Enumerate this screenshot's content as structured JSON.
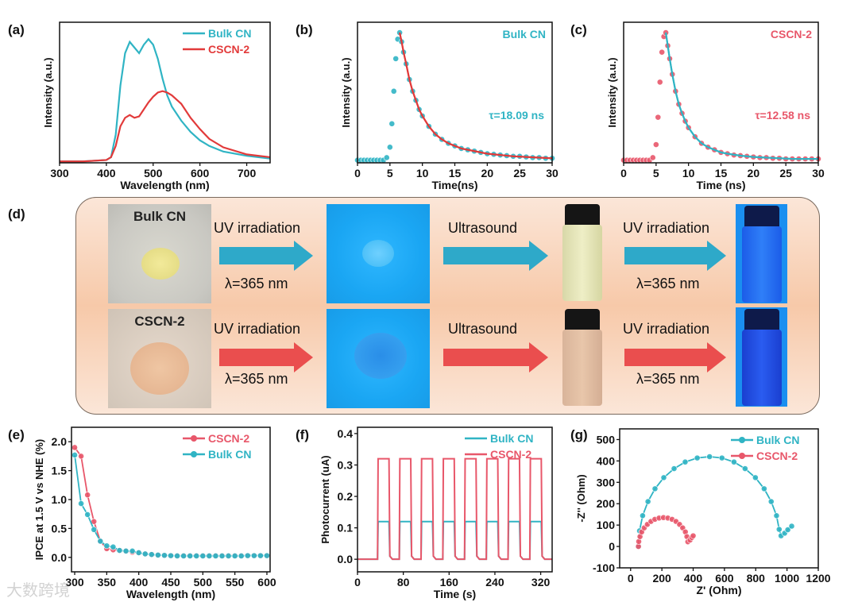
{
  "panel_labels": {
    "a": "(a)",
    "b": "(b)",
    "c": "(c)",
    "d": "(d)",
    "e": "(e)",
    "f": "(f)",
    "g": "(g)"
  },
  "colors": {
    "cyan": "#30b4c4",
    "red": "#e23a3a",
    "pink": "#e8576a"
  },
  "watermark": "大数跨境",
  "chart_data": [
    {
      "id": "a",
      "type": "line",
      "title": "",
      "xlabel": "Wavelength (nm)",
      "ylabel": "Intensity (a.u.)",
      "xlim": [
        300,
        750
      ],
      "ylim": [
        0,
        1
      ],
      "xticks": [
        300,
        400,
        500,
        600,
        700
      ],
      "yticks": [],
      "legend": "top-right",
      "series": [
        {
          "name": "Bulk CN",
          "color": "#30b4c4",
          "style": "line",
          "x": [
            300,
            350,
            400,
            410,
            420,
            430,
            440,
            450,
            460,
            470,
            480,
            490,
            500,
            510,
            520,
            530,
            540,
            560,
            580,
            600,
            620,
            650,
            700,
            750
          ],
          "y": [
            0.01,
            0.01,
            0.02,
            0.04,
            0.2,
            0.55,
            0.78,
            0.86,
            0.82,
            0.78,
            0.84,
            0.88,
            0.84,
            0.74,
            0.6,
            0.48,
            0.4,
            0.3,
            0.22,
            0.16,
            0.12,
            0.08,
            0.05,
            0.03
          ]
        },
        {
          "name": "CSCN-2",
          "color": "#e23a3a",
          "style": "line",
          "x": [
            300,
            350,
            400,
            410,
            420,
            430,
            440,
            450,
            460,
            470,
            480,
            490,
            500,
            510,
            520,
            530,
            540,
            560,
            580,
            600,
            620,
            650,
            700,
            750
          ],
          "y": [
            0.01,
            0.01,
            0.02,
            0.04,
            0.12,
            0.26,
            0.32,
            0.34,
            0.32,
            0.33,
            0.38,
            0.43,
            0.47,
            0.5,
            0.51,
            0.5,
            0.48,
            0.42,
            0.32,
            0.24,
            0.17,
            0.11,
            0.06,
            0.04
          ]
        }
      ]
    },
    {
      "id": "b",
      "type": "scatter",
      "xlabel": "Time(ns)",
      "ylabel": "Intensity (a.u.)",
      "xlim": [
        0,
        30
      ],
      "ylim": [
        0,
        1.08
      ],
      "xticks": [
        0,
        5,
        10,
        15,
        20,
        25,
        30
      ],
      "yticks": [],
      "legend": "top-right",
      "legend_text": "Bulk CN",
      "legend_color": "#30b4c4",
      "annotation": "τ=18.09 ns",
      "annotation_color": "#30b4c4",
      "series": [
        {
          "name": "Bulk CN",
          "color": "#30b4c4",
          "style": "markers",
          "x": [
            0,
            0.5,
            1,
            1.5,
            2,
            2.5,
            3,
            3.5,
            4,
            4.5,
            5,
            5.3,
            5.6,
            5.9,
            6.2,
            6.5,
            6.8,
            7.1,
            7.5,
            8,
            8.5,
            9,
            9.5,
            10,
            11,
            12,
            13,
            14,
            15,
            16,
            17,
            18,
            19,
            20,
            21,
            22,
            23,
            24,
            25,
            26,
            27,
            28,
            29,
            30
          ],
          "y": [
            0.02,
            0.02,
            0.02,
            0.02,
            0.02,
            0.02,
            0.02,
            0.02,
            0.02,
            0.04,
            0.12,
            0.3,
            0.55,
            0.8,
            0.95,
            1.0,
            0.93,
            0.85,
            0.76,
            0.64,
            0.55,
            0.48,
            0.41,
            0.36,
            0.28,
            0.22,
            0.18,
            0.15,
            0.13,
            0.11,
            0.1,
            0.09,
            0.08,
            0.07,
            0.065,
            0.06,
            0.055,
            0.05,
            0.05,
            0.045,
            0.04,
            0.04,
            0.035,
            0.035
          ]
        },
        {
          "name": "fit",
          "color": "#e23a3a",
          "style": "line",
          "x": [
            6.5,
            6.8,
            7.1,
            7.5,
            8,
            8.5,
            9,
            9.5,
            10,
            11,
            12,
            13,
            14,
            15,
            16,
            18,
            20,
            22,
            24,
            26,
            28,
            30
          ],
          "y": [
            1.0,
            0.93,
            0.85,
            0.76,
            0.64,
            0.55,
            0.48,
            0.41,
            0.36,
            0.28,
            0.22,
            0.18,
            0.15,
            0.13,
            0.11,
            0.09,
            0.07,
            0.06,
            0.05,
            0.045,
            0.04,
            0.035
          ]
        }
      ]
    },
    {
      "id": "c",
      "type": "scatter",
      "xlabel": "Time (ns)",
      "ylabel": "Intensity (a.u.)",
      "xlim": [
        0,
        30
      ],
      "ylim": [
        0,
        1.08
      ],
      "xticks": [
        0,
        5,
        10,
        15,
        20,
        25,
        30
      ],
      "yticks": [],
      "legend": "top-right",
      "legend_text": "CSCN-2",
      "legend_color": "#e8576a",
      "annotation": "τ=12.58 ns",
      "annotation_color": "#e8576a",
      "series": [
        {
          "name": "CSCN-2",
          "color": "#e8576a",
          "style": "markers",
          "x": [
            0,
            0.5,
            1,
            1.5,
            2,
            2.5,
            3,
            3.5,
            4,
            4.5,
            5,
            5.3,
            5.6,
            5.9,
            6.2,
            6.5,
            6.8,
            7.1,
            7.5,
            8,
            8.5,
            9,
            9.5,
            10,
            11,
            12,
            13,
            14,
            15,
            16,
            17,
            18,
            19,
            20,
            21,
            22,
            23,
            24,
            25,
            26,
            27,
            28,
            29,
            30
          ],
          "y": [
            0.02,
            0.02,
            0.02,
            0.02,
            0.02,
            0.02,
            0.02,
            0.02,
            0.02,
            0.04,
            0.14,
            0.35,
            0.62,
            0.85,
            0.97,
            1.0,
            0.9,
            0.8,
            0.68,
            0.55,
            0.45,
            0.38,
            0.32,
            0.27,
            0.2,
            0.15,
            0.12,
            0.1,
            0.08,
            0.07,
            0.06,
            0.055,
            0.05,
            0.045,
            0.04,
            0.04,
            0.035,
            0.035,
            0.03,
            0.03,
            0.03,
            0.03,
            0.03,
            0.03
          ]
        },
        {
          "name": "fit",
          "color": "#30b4c4",
          "style": "line",
          "x": [
            6.5,
            6.8,
            7.1,
            7.5,
            8,
            8.5,
            9,
            9.5,
            10,
            11,
            12,
            13,
            14,
            15,
            16,
            18,
            20,
            22,
            24,
            26,
            28,
            30
          ],
          "y": [
            1.0,
            0.9,
            0.8,
            0.68,
            0.55,
            0.45,
            0.38,
            0.32,
            0.27,
            0.2,
            0.15,
            0.12,
            0.1,
            0.08,
            0.07,
            0.055,
            0.045,
            0.04,
            0.035,
            0.03,
            0.03,
            0.03
          ]
        }
      ]
    },
    {
      "id": "e",
      "type": "line",
      "xlabel": "Wavelength (nm)",
      "ylabel": "IPCE at 1.5 V vs NHE (%)",
      "xlim": [
        295,
        605
      ],
      "ylim": [
        -0.25,
        2.25
      ],
      "xticks": [
        300,
        350,
        400,
        450,
        500,
        550,
        600
      ],
      "yticks": [
        0.0,
        0.5,
        1.0,
        1.5,
        2.0
      ],
      "ytick_labels": [
        "0.0",
        "0.5",
        "1.0",
        "1.5",
        "2.0"
      ],
      "legend": "top-right",
      "series": [
        {
          "name": "CSCN-2",
          "color": "#e8576a",
          "style": "line-markers",
          "x": [
            300,
            310,
            320,
            330,
            340,
            350,
            360,
            370,
            380,
            390,
            400,
            410,
            420,
            430,
            440,
            450,
            460,
            470,
            480,
            490,
            500,
            510,
            520,
            530,
            540,
            550,
            560,
            570,
            580,
            590,
            600
          ],
          "y": [
            1.9,
            1.75,
            1.08,
            0.62,
            0.28,
            0.15,
            0.13,
            0.12,
            0.11,
            0.09,
            0.08,
            0.06,
            0.05,
            0.04,
            0.035,
            0.03,
            0.03,
            0.03,
            0.03,
            0.03,
            0.03,
            0.03,
            0.03,
            0.03,
            0.03,
            0.03,
            0.03,
            0.03,
            0.03,
            0.03,
            0.03
          ]
        },
        {
          "name": "Bulk CN",
          "color": "#30b4c4",
          "style": "line-markers",
          "x": [
            300,
            310,
            320,
            330,
            340,
            350,
            360,
            370,
            380,
            390,
            400,
            410,
            420,
            430,
            440,
            450,
            460,
            470,
            480,
            490,
            500,
            510,
            520,
            530,
            540,
            550,
            560,
            570,
            580,
            590,
            600
          ],
          "y": [
            1.77,
            0.93,
            0.74,
            0.48,
            0.28,
            0.2,
            0.18,
            0.12,
            0.11,
            0.11,
            0.08,
            0.06,
            0.05,
            0.04,
            0.035,
            0.03,
            0.025,
            0.025,
            0.025,
            0.025,
            0.025,
            0.025,
            0.025,
            0.025,
            0.025,
            0.025,
            0.025,
            0.03,
            0.03,
            0.03,
            0.03
          ]
        }
      ]
    },
    {
      "id": "f",
      "type": "line",
      "xlabel": "Time (s)",
      "ylabel": "Photocurrent (uA)",
      "xlim": [
        0,
        340
      ],
      "ylim": [
        -0.04,
        0.42
      ],
      "xticks": [
        0,
        80,
        160,
        240,
        320
      ],
      "yticks": [
        0.0,
        0.1,
        0.2,
        0.3,
        0.4
      ],
      "ytick_labels": [
        "0.0",
        "0.1",
        "0.2",
        "0.3",
        "0.4"
      ],
      "legend": "top-right",
      "pulses_on": [
        35,
        73,
        111,
        149,
        187,
        225,
        263,
        301
      ],
      "pulse_duration": 20,
      "series": [
        {
          "name": "Bulk CN",
          "color": "#30b4c4",
          "style": "pulse",
          "on_level": 0.12,
          "off_level": 0.0
        },
        {
          "name": "CSCN-2",
          "color": "#e8576a",
          "style": "pulse",
          "on_level": 0.32,
          "off_level": 0.0
        }
      ]
    },
    {
      "id": "g",
      "type": "scatter",
      "xlabel": "Z' (Ohm)",
      "ylabel": "-Z'' (Ohm)",
      "xlim": [
        -70,
        1200
      ],
      "ylim": [
        -100,
        550
      ],
      "xticks": [
        0,
        200,
        400,
        600,
        800,
        1000,
        1200
      ],
      "yticks": [
        -100,
        0,
        100,
        200,
        300,
        400,
        500
      ],
      "ytick_labels": [
        "-100",
        "0",
        "100",
        "200",
        "300",
        "400",
        "500"
      ],
      "legend": "top-right",
      "series": [
        {
          "name": "Bulk CN",
          "color": "#30b4c4",
          "style": "line-markers",
          "x": [
            50,
            57,
            77,
            111,
            156,
            212,
            278,
            349,
            426,
            505,
            584,
            661,
            732,
            798,
            854,
            899,
            933,
            950,
            962,
            985,
            1005,
            1030
          ],
          "y": [
            0,
            73,
            144,
            210,
            270,
            322,
            364,
            395,
            414,
            420,
            414,
            395,
            364,
            322,
            270,
            210,
            144,
            80,
            50,
            62,
            78,
            95
          ]
        },
        {
          "name": "CSCN-2",
          "color": "#e8576a",
          "style": "line-markers",
          "x": [
            50,
            52,
            60,
            71,
            87,
            107,
            130,
            155,
            182,
            210,
            238,
            265,
            290,
            313,
            333,
            350,
            360,
            366,
            380,
            392,
            400
          ],
          "y": [
            0,
            23,
            46,
            68,
            87,
            103,
            117,
            127,
            133,
            135,
            133,
            127,
            117,
            103,
            87,
            68,
            46,
            22,
            30,
            42,
            50
          ]
        }
      ]
    }
  ],
  "scheme": {
    "photo_labels": [
      "Bulk CN",
      "CSCN-2"
    ],
    "rows": [
      {
        "step1_top": "UV irradiation",
        "step1_bottom": "λ=365 nm",
        "step2_top": "Ultrasound",
        "step3_top": "UV irradiation",
        "step3_bottom": "λ=365 nm"
      },
      {
        "step1_top": "UV irradiation",
        "step1_bottom": "λ=365 nm",
        "step2_top": "Ultrasound",
        "step3_top": "UV irradiation",
        "step3_bottom": "λ=365 nm"
      }
    ]
  }
}
